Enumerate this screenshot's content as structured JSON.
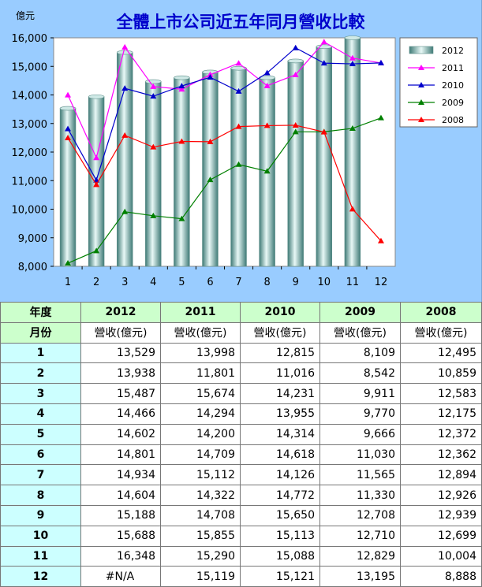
{
  "chart_data": {
    "type": "bar+line",
    "title": "全體上市公司近五年同月營收比較",
    "ylabel": "億元",
    "ylim": [
      8000,
      16000
    ],
    "yticks": [
      "8,000",
      "9,000",
      "10,000",
      "11,000",
      "12,000",
      "13,000",
      "14,000",
      "15,000",
      "16,000"
    ],
    "categories": [
      "1",
      "2",
      "3",
      "4",
      "5",
      "6",
      "7",
      "8",
      "9",
      "10",
      "11",
      "12"
    ],
    "bar_series": {
      "name": "2012",
      "values": [
        13529,
        13938,
        15487,
        14466,
        14602,
        14801,
        14934,
        14604,
        15188,
        15688,
        16348,
        null
      ],
      "color": "#a8d0cc"
    },
    "line_series": [
      {
        "name": "2011",
        "color": "#ff00ff",
        "values": [
          13998,
          11801,
          15674,
          14294,
          14200,
          14709,
          15112,
          14322,
          14708,
          15855,
          15290,
          15119
        ]
      },
      {
        "name": "2010",
        "color": "#0000cc",
        "values": [
          12815,
          11016,
          14231,
          13955,
          14314,
          14618,
          14126,
          14772,
          15650,
          15113,
          15088,
          15121
        ]
      },
      {
        "name": "2009",
        "color": "#008000",
        "values": [
          8109,
          8542,
          9911,
          9770,
          9666,
          11030,
          11565,
          11330,
          12708,
          12710,
          12829,
          13195
        ]
      },
      {
        "name": "2008",
        "color": "#ff0000",
        "values": [
          12495,
          10859,
          12583,
          12175,
          12372,
          12362,
          12894,
          12926,
          12939,
          12699,
          10004,
          8888
        ]
      }
    ],
    "legend_placement": "right",
    "grid": false
  },
  "table": {
    "year_header": "年度",
    "month_header": "月份",
    "unit_label": "營收(億元)",
    "years": [
      "2012",
      "2011",
      "2010",
      "2009",
      "2008"
    ],
    "rows": [
      {
        "month": "1",
        "values": [
          "13,529",
          "13,998",
          "12,815",
          "8,109",
          "12,495"
        ]
      },
      {
        "month": "2",
        "values": [
          "13,938",
          "11,801",
          "11,016",
          "8,542",
          "10,859"
        ]
      },
      {
        "month": "3",
        "values": [
          "15,487",
          "15,674",
          "14,231",
          "9,911",
          "12,583"
        ]
      },
      {
        "month": "4",
        "values": [
          "14,466",
          "14,294",
          "13,955",
          "9,770",
          "12,175"
        ]
      },
      {
        "month": "5",
        "values": [
          "14,602",
          "14,200",
          "14,314",
          "9,666",
          "12,372"
        ]
      },
      {
        "month": "6",
        "values": [
          "14,801",
          "14,709",
          "14,618",
          "11,030",
          "12,362"
        ]
      },
      {
        "month": "7",
        "values": [
          "14,934",
          "15,112",
          "14,126",
          "11,565",
          "12,894"
        ]
      },
      {
        "month": "8",
        "values": [
          "14,604",
          "14,322",
          "14,772",
          "11,330",
          "12,926"
        ]
      },
      {
        "month": "9",
        "values": [
          "15,188",
          "14,708",
          "15,650",
          "12,708",
          "12,939"
        ]
      },
      {
        "month": "10",
        "values": [
          "15,688",
          "15,855",
          "15,113",
          "12,710",
          "12,699"
        ]
      },
      {
        "month": "11",
        "values": [
          "16,348",
          "15,290",
          "15,088",
          "12,829",
          "10,004"
        ]
      },
      {
        "month": "12",
        "values": [
          "#N/A",
          "15,119",
          "15,121",
          "13,195",
          "8,888"
        ]
      }
    ]
  }
}
